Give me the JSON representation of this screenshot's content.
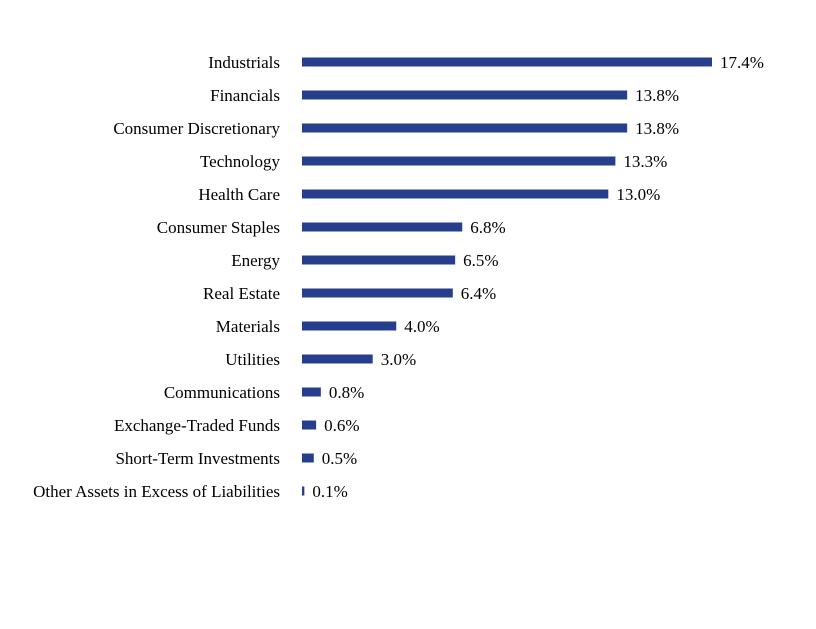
{
  "chart_data": {
    "type": "bar",
    "orientation": "horizontal",
    "categories": [
      "Industrials",
      "Financials",
      "Consumer Discretionary",
      "Technology",
      "Health Care",
      "Consumer Staples",
      "Energy",
      "Real Estate",
      "Materials",
      "Utilities",
      "Communications",
      "Exchange-Traded Funds",
      "Short-Term Investments",
      "Other Assets in Excess of Liabilities"
    ],
    "values": [
      17.4,
      13.8,
      13.8,
      13.3,
      13.0,
      6.8,
      6.5,
      6.4,
      4.0,
      3.0,
      0.8,
      0.6,
      0.5,
      0.1
    ],
    "data_labels": [
      "17.4%",
      "13.8%",
      "13.8%",
      "13.3%",
      "13.0%",
      "6.8%",
      "6.5%",
      "6.4%",
      "4.0%",
      "3.0%",
      "0.8%",
      "0.6%",
      "0.5%",
      "0.1%"
    ],
    "unit": "%",
    "title": "",
    "xlabel": "",
    "ylabel": "",
    "xlim": [
      0,
      17.4
    ],
    "grid": false,
    "legend": "none",
    "bar_color": "#263e8c",
    "text_color": "#000000"
  }
}
